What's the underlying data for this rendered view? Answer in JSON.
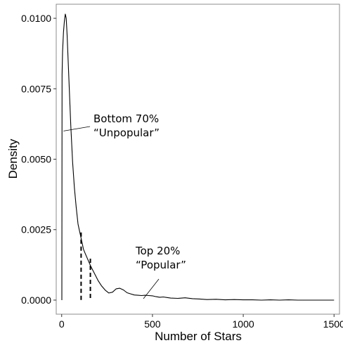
{
  "chart_data": {
    "type": "line",
    "xlabel": "Number of Stars",
    "ylabel": "Density",
    "xlim": [
      -30,
      1530
    ],
    "ylim": [
      -0.0005,
      0.0105
    ],
    "x_ticks": [
      0,
      500,
      1000,
      1500
    ],
    "x_tick_labels": [
      "0",
      "500",
      "1000",
      "1500"
    ],
    "y_ticks": [
      0.0,
      0.0025,
      0.005,
      0.0075,
      0.01
    ],
    "y_tick_labels": [
      "0.0000",
      "0.0025",
      "0.0050",
      "0.0075",
      "0.0100"
    ],
    "grid": false,
    "series": [
      {
        "x": [
          1,
          2,
          5,
          10,
          15,
          20,
          25,
          30,
          40,
          50,
          60,
          70,
          80,
          90,
          100,
          110,
          120,
          130,
          140,
          150,
          160,
          180,
          200,
          220,
          240,
          260,
          280,
          300,
          320,
          340,
          360,
          380,
          400,
          420,
          440,
          460,
          480,
          500,
          520,
          540,
          560,
          580,
          600,
          640,
          680,
          720,
          760,
          800,
          850,
          900,
          950,
          1000,
          1050,
          1100,
          1150,
          1200,
          1250,
          1300,
          1350,
          1400,
          1450,
          1500
        ],
        "y": [
          0.0,
          0.008,
          0.0088,
          0.0095,
          0.0099,
          0.01015,
          0.01,
          0.0094,
          0.0078,
          0.0062,
          0.0049,
          0.004,
          0.0033,
          0.0027,
          0.0024,
          0.0021,
          0.0018,
          0.00165,
          0.0015,
          0.00135,
          0.0012,
          0.00095,
          0.0007,
          0.0005,
          0.00035,
          0.00025,
          0.00028,
          0.0004,
          0.00042,
          0.00036,
          0.00026,
          0.00022,
          0.00018,
          0.00017,
          0.00016,
          0.00017,
          0.00016,
          0.00015,
          0.00012,
          0.0001,
          0.00011,
          9e-05,
          7e-05,
          6e-05,
          8e-05,
          5e-05,
          4e-05,
          2e-05,
          3e-05,
          1e-05,
          2e-05,
          1e-05,
          1e-05,
          0.0,
          1e-05,
          0.0,
          1e-05,
          0.0,
          0.0,
          0.0,
          0.0,
          0.0
        ]
      }
    ],
    "cutoffs": [
      {
        "x": 107,
        "y": 0.0024
      },
      {
        "x": 158,
        "y": 0.00147
      }
    ],
    "annotations": [
      {
        "lines": [
          "Bottom 70%",
          "“Unpopular”"
        ],
        "points_to": {
          "x": 10,
          "y": 0.006
        }
      },
      {
        "lines": [
          "Top 20%",
          "“Popular”"
        ],
        "points_to": {
          "x": 450,
          "y": 5e-05
        }
      }
    ]
  }
}
